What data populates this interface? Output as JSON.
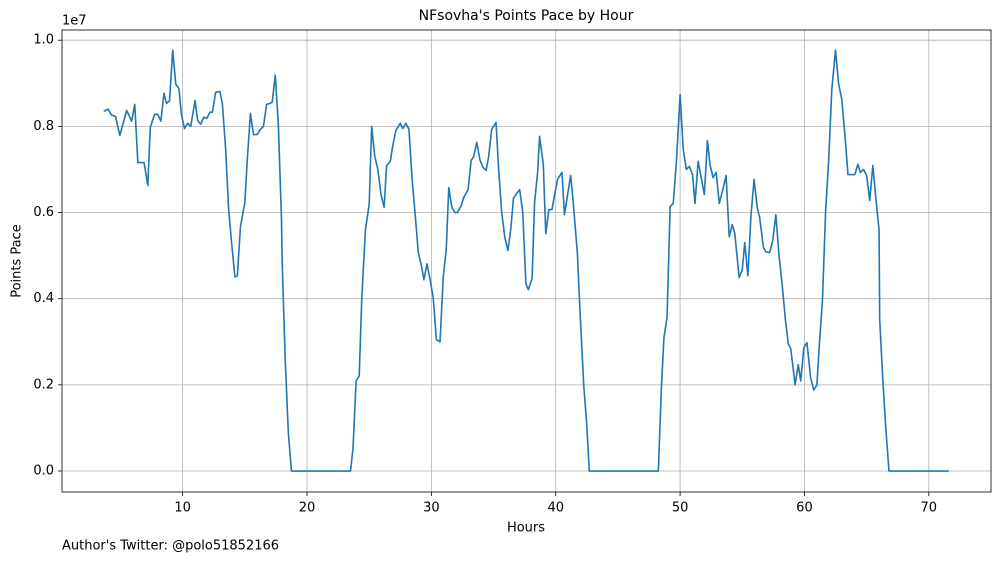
{
  "chart_data": {
    "type": "line",
    "title": "NFsovha's Points Pace by Hour",
    "x_label": "Hours",
    "y_label": "Points Pace",
    "y_offset_label": "1e7",
    "footnote": "Author's Twitter: @polo51852166",
    "color": "#1f77b4",
    "grid": true,
    "x": [
      3.66,
      4.0,
      4.3,
      4.6,
      4.95,
      5.3,
      5.5,
      5.9,
      6.15,
      6.4,
      6.9,
      7.2,
      7.4,
      7.75,
      8.0,
      8.25,
      8.5,
      8.7,
      8.95,
      9.2,
      9.45,
      9.7,
      9.9,
      10.15,
      10.4,
      10.65,
      11.0,
      11.2,
      11.45,
      11.7,
      11.95,
      12.2,
      12.4,
      12.65,
      13.0,
      13.2,
      13.45,
      13.7,
      13.95,
      14.2,
      14.4,
      14.65,
      15.0,
      15.2,
      15.45,
      15.7,
      16.0,
      16.25,
      16.5,
      16.75,
      17.0,
      17.2,
      17.45,
      17.7,
      17.95,
      18.0,
      18.25,
      18.5,
      18.75,
      23.5,
      23.7,
      23.95,
      24.2,
      24.4,
      24.7,
      25.0,
      25.2,
      25.45,
      25.7,
      25.95,
      26.2,
      26.4,
      26.7,
      26.9,
      27.15,
      27.5,
      27.7,
      27.95,
      28.2,
      28.45,
      28.7,
      28.95,
      29.2,
      29.4,
      29.65,
      29.9,
      30.15,
      30.4,
      30.7,
      30.95,
      31.2,
      31.4,
      31.65,
      31.9,
      32.1,
      32.4,
      32.6,
      32.95,
      33.2,
      33.4,
      33.65,
      33.9,
      34.15,
      34.4,
      34.6,
      34.85,
      35.2,
      35.4,
      35.65,
      35.9,
      36.15,
      36.4,
      36.6,
      36.85,
      37.1,
      37.35,
      37.6,
      37.8,
      38.1,
      38.3,
      38.55,
      38.7,
      39.0,
      39.2,
      39.45,
      39.7,
      39.9,
      40.15,
      40.5,
      40.7,
      40.95,
      41.2,
      41.4,
      41.75,
      41.9,
      42.25,
      42.5,
      42.7,
      48.25,
      48.5,
      48.7,
      48.95,
      49.2,
      49.45,
      49.7,
      50.0,
      50.25,
      50.5,
      50.75,
      51.0,
      51.2,
      51.45,
      51.7,
      51.95,
      52.2,
      52.4,
      52.65,
      52.9,
      53.15,
      53.4,
      53.7,
      53.95,
      54.2,
      54.4,
      54.75,
      55.0,
      55.2,
      55.45,
      55.7,
      55.95,
      56.2,
      56.4,
      56.7,
      56.9,
      57.2,
      57.45,
      57.7,
      57.95,
      58.2,
      58.45,
      58.7,
      58.9,
      59.25,
      59.5,
      59.7,
      59.95,
      60.2,
      60.5,
      60.75,
      61.0,
      61.2,
      61.45,
      61.7,
      61.95,
      62.2,
      62.5,
      62.75,
      63.0,
      63.25,
      63.5,
      63.7,
      64.05,
      64.3,
      64.5,
      64.75,
      65.0,
      65.25,
      65.5,
      65.75,
      66.0,
      66.05,
      66.3,
      66.55,
      66.8,
      71.6
    ],
    "values": [
      0.835,
      0.84,
      0.826,
      0.823,
      0.779,
      0.816,
      0.837,
      0.812,
      0.851,
      0.716,
      0.716,
      0.663,
      0.798,
      0.828,
      0.828,
      0.812,
      0.877,
      0.853,
      0.86,
      0.977,
      0.898,
      0.888,
      0.828,
      0.795,
      0.807,
      0.8,
      0.86,
      0.814,
      0.805,
      0.821,
      0.819,
      0.833,
      0.833,
      0.879,
      0.881,
      0.851,
      0.751,
      0.607,
      0.526,
      0.451,
      0.453,
      0.567,
      0.623,
      0.723,
      0.83,
      0.781,
      0.781,
      0.793,
      0.8,
      0.851,
      0.853,
      0.856,
      0.919,
      0.802,
      0.584,
      0.49,
      0.258,
      0.088,
      0,
      0,
      0.053,
      0.209,
      0.221,
      0.398,
      0.56,
      0.619,
      0.8,
      0.73,
      0.7,
      0.642,
      0.612,
      0.709,
      0.719,
      0.756,
      0.791,
      0.807,
      0.795,
      0.807,
      0.793,
      0.677,
      0.595,
      0.507,
      0.477,
      0.444,
      0.481,
      0.444,
      0.402,
      0.305,
      0.3,
      0.449,
      0.516,
      0.658,
      0.612,
      0.6,
      0.6,
      0.616,
      0.635,
      0.653,
      0.721,
      0.73,
      0.763,
      0.723,
      0.705,
      0.698,
      0.728,
      0.793,
      0.809,
      0.705,
      0.602,
      0.544,
      0.512,
      0.565,
      0.633,
      0.644,
      0.653,
      0.6,
      0.435,
      0.421,
      0.447,
      0.623,
      0.695,
      0.777,
      0.712,
      0.551,
      0.607,
      0.607,
      0.64,
      0.677,
      0.693,
      0.595,
      0.64,
      0.686,
      0.626,
      0.502,
      0.402,
      0.2,
      0.105,
      0,
      0,
      0.195,
      0.309,
      0.356,
      0.614,
      0.621,
      0.716,
      0.874,
      0.747,
      0.7,
      0.707,
      0.688,
      0.621,
      0.719,
      0.681,
      0.642,
      0.767,
      0.712,
      0.681,
      0.693,
      0.621,
      0.649,
      0.686,
      0.544,
      0.572,
      0.551,
      0.449,
      0.467,
      0.53,
      0.453,
      0.593,
      0.677,
      0.612,
      0.588,
      0.519,
      0.509,
      0.507,
      0.535,
      0.595,
      0.502,
      0.435,
      0.356,
      0.295,
      0.284,
      0.2,
      0.247,
      0.209,
      0.286,
      0.298,
      0.216,
      0.188,
      0.2,
      0.295,
      0.398,
      0.602,
      0.723,
      0.886,
      0.977,
      0.898,
      0.863,
      0.781,
      0.688,
      0.688,
      0.688,
      0.712,
      0.693,
      0.7,
      0.686,
      0.628,
      0.709,
      0.63,
      0.56,
      0.351,
      0.212,
      0.095,
      0,
      0
    ],
    "xlim": [
      0.3,
      75.0
    ],
    "ylim": [
      -0.0487,
      1.0237
    ],
    "xticks": [
      10,
      20,
      30,
      40,
      50,
      60,
      70
    ],
    "yticks": [
      {
        "value": 0,
        "label": "0.0"
      },
      {
        "value": 0.2,
        "label": "0.2"
      },
      {
        "value": 0.4,
        "label": "0.4"
      },
      {
        "value": 0.6,
        "label": "0.6"
      },
      {
        "value": 0.8,
        "label": "0.8"
      },
      {
        "value": 1.0,
        "label": "1.0"
      }
    ]
  }
}
